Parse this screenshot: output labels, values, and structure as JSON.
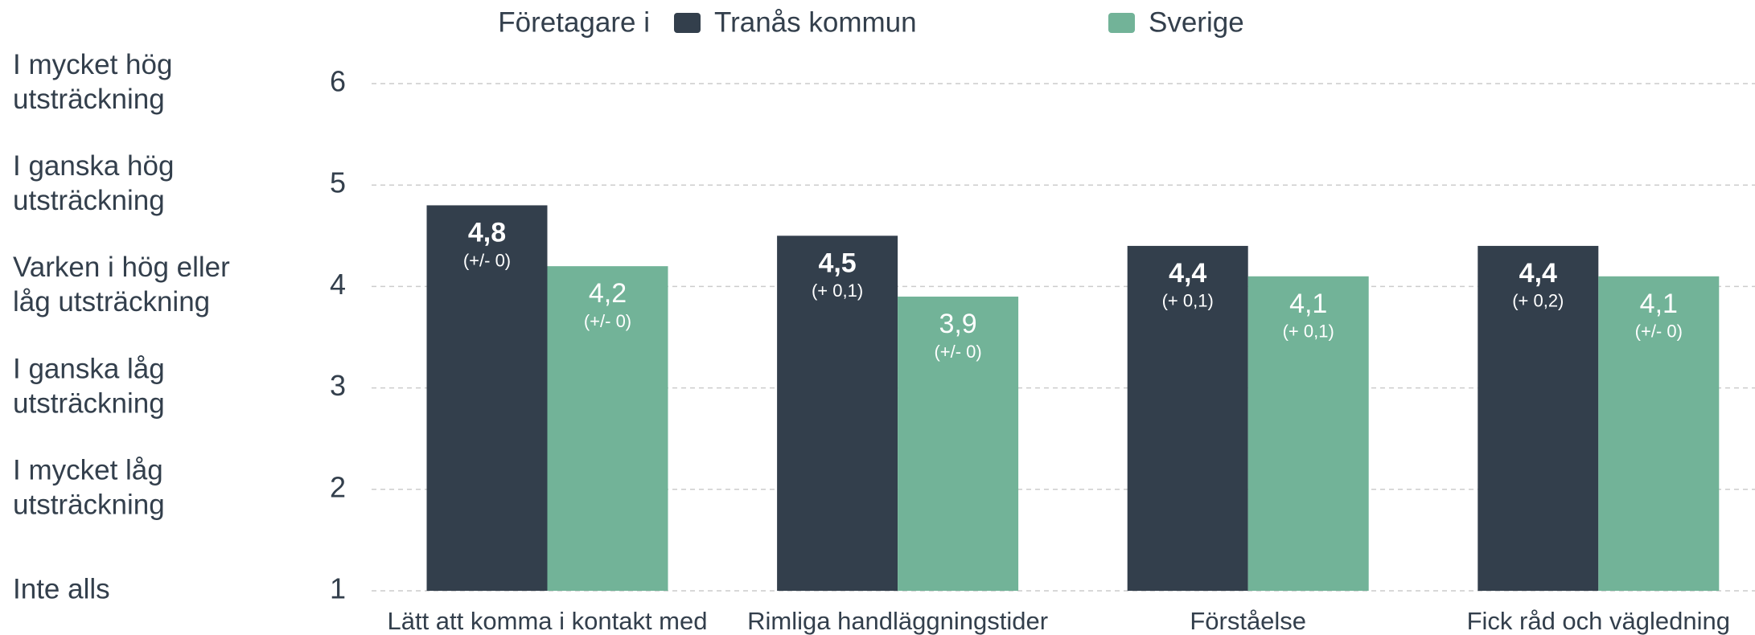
{
  "chart_data": {
    "type": "bar",
    "legend_title": "Företagare i",
    "categories": [
      "Lätt att komma i kontakt med",
      "Rimliga handläggningstider",
      "Förståelse",
      "Fick råd och vägledning"
    ],
    "series": [
      {
        "name": "Tranås kommun",
        "color": "#333f4c",
        "values": [
          4.8,
          4.5,
          4.4,
          4.4
        ],
        "value_labels": [
          "4,8",
          "4,5",
          "4,4",
          "4,4"
        ],
        "change_labels": [
          "(+/- 0)",
          "(+ 0,1)",
          "(+ 0,1)",
          "(+ 0,2)"
        ]
      },
      {
        "name": "Sverige",
        "color": "#72b398",
        "values": [
          4.2,
          3.9,
          4.1,
          4.1
        ],
        "value_labels": [
          "4,2",
          "3,9",
          "4,1",
          "4,1"
        ],
        "change_labels": [
          "(+/- 0)",
          "(+/- 0)",
          "(+ 0,1)",
          "(+/- 0)"
        ]
      }
    ],
    "ylim": [
      1,
      6
    ],
    "yticks": [
      1,
      2,
      3,
      4,
      5,
      6
    ],
    "grid": true,
    "scale_labels": [
      {
        "value": 6,
        "lines": [
          "I mycket hög",
          "utsträckning"
        ]
      },
      {
        "value": 5,
        "lines": [
          "I ganska hög",
          "utsträckning"
        ]
      },
      {
        "value": 4,
        "lines": [
          "Varken i hög eller",
          "låg utsträckning"
        ]
      },
      {
        "value": 3,
        "lines": [
          "I ganska låg",
          "utsträckning"
        ]
      },
      {
        "value": 2,
        "lines": [
          "I mycket låg",
          "utsträckning"
        ]
      },
      {
        "value": 1,
        "lines": [
          "Inte alls"
        ]
      }
    ]
  }
}
